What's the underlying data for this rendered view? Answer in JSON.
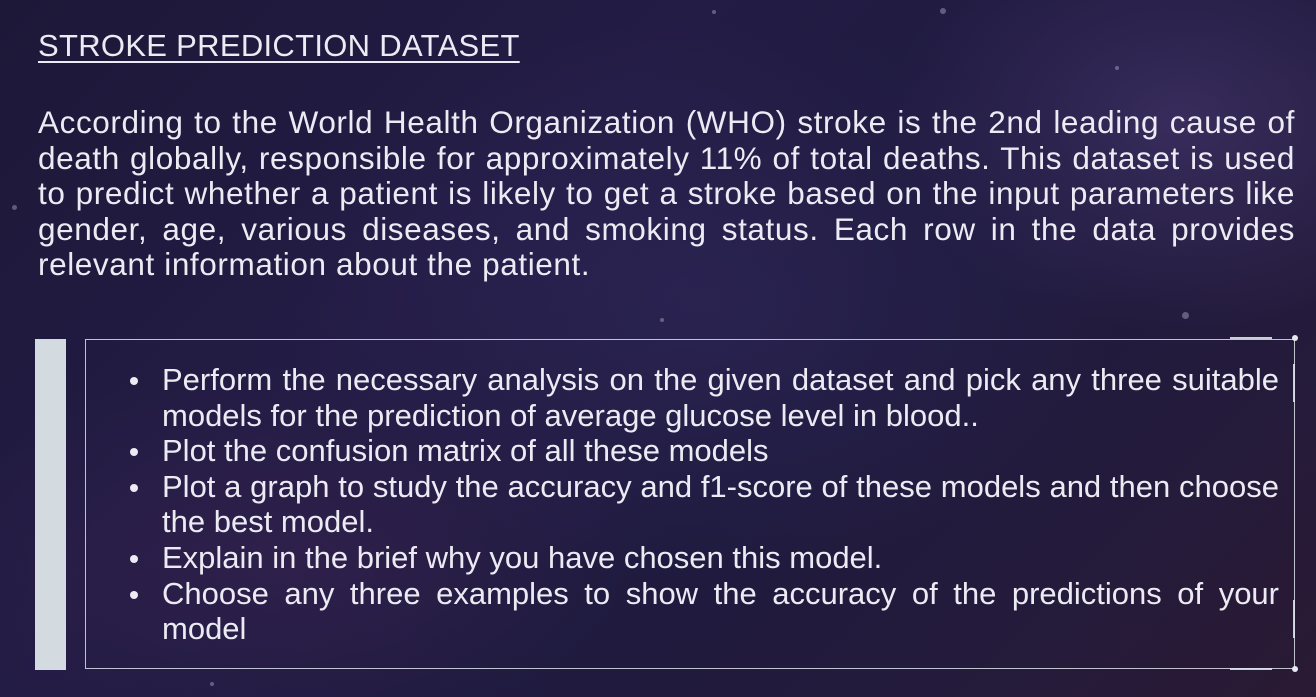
{
  "title": "STROKE PREDICTION DATASET",
  "intro": "According to the World Health Organization (WHO) stroke is the 2nd leading cause of death globally, responsible for approximately 11% of total deaths. This dataset is used to predict whether a patient is likely to get a stroke based on the input parameters like gender, age, various diseases, and smoking status. Each row in the data provides relevant information about the patient.",
  "tasks": [
    "Perform the necessary analysis on the given dataset and pick any three suitable models for the prediction of average glucose level in blood..",
    "Plot the confusion matrix of all these models",
    "Plot a graph to study the accuracy and f1-score of these models and then choose the best model.",
    "Explain in the brief why you have chosen this model.",
    "Choose any three examples to show the accuracy of the predictions of your model"
  ]
}
